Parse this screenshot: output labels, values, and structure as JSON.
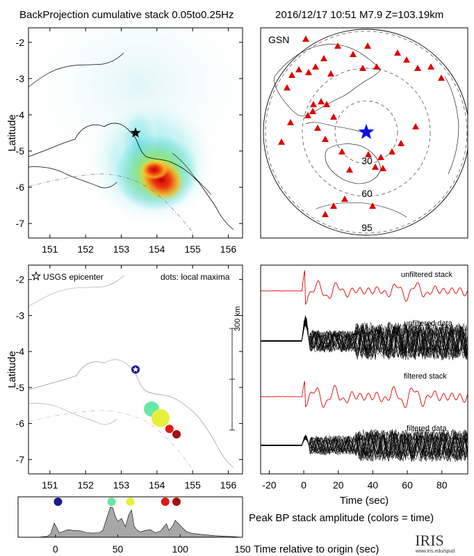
{
  "header": {
    "title": "BackProjection cumulative stack 0.05to0.25Hz",
    "event": "2016/12/17 10:51   M7.9  Z=103.19km"
  },
  "colors": {
    "map_frame": "#000000",
    "station": "#e00000",
    "epicenter_blue": "#1010e0",
    "stack_red": "#e00000",
    "trace_black": "#000000",
    "amplitude_fill": "#a8a8a8"
  },
  "chart_data": [
    {
      "type": "heatmap",
      "name": "backprojection-map",
      "ylabel": "Latitude",
      "xlim": [
        150.4,
        156.4
      ],
      "ylim": [
        -7.4,
        -1.6
      ],
      "x_ticks": [
        151,
        152,
        153,
        154,
        155,
        156
      ],
      "y_ticks": [
        -2,
        -3,
        -4,
        -5,
        -6,
        -7
      ],
      "epicenter": {
        "lon": 153.4,
        "lat": -4.5
      },
      "peak": {
        "lon": 154.1,
        "lat": -6.2
      }
    },
    {
      "type": "map",
      "name": "gsn-station-map",
      "label": "GSN",
      "ring_labels": [
        "30",
        "60",
        "95"
      ],
      "station_count": 41
    },
    {
      "type": "scatter",
      "name": "local-maxima-map",
      "ylabel": "Latitude",
      "legend": [
        "USGS epicenter",
        "dots: local maxima"
      ],
      "scale_label": "300 km",
      "xlim": [
        150.4,
        156.4
      ],
      "ylim": [
        -7.4,
        -1.6
      ],
      "x_ticks": [
        151,
        152,
        153,
        154,
        155,
        156
      ],
      "y_ticks": [
        -2,
        -3,
        -4,
        -5,
        -6,
        -7
      ],
      "points": [
        {
          "lon": 153.4,
          "lat": -4.5,
          "color": "#1a1a8c",
          "size": 6
        },
        {
          "lon": 153.85,
          "lat": -5.6,
          "color": "#66e8a8",
          "size": 11
        },
        {
          "lon": 154.1,
          "lat": -5.85,
          "color": "#e6f03c",
          "size": 13
        },
        {
          "lon": 154.35,
          "lat": -6.15,
          "color": "#e01818",
          "size": 6
        },
        {
          "lon": 154.55,
          "lat": -6.3,
          "color": "#a01010",
          "size": 6
        }
      ]
    },
    {
      "type": "line",
      "name": "waveforms",
      "xlabel": "Time (sec)",
      "xlim": [
        -25,
        95
      ],
      "x_ticks": [
        -20,
        0,
        20,
        40,
        60,
        80
      ],
      "labels": [
        "unfiltered stack",
        "unfiltered data",
        "filtered stack",
        "filtered data"
      ]
    },
    {
      "type": "area",
      "name": "peak-bp-amplitude",
      "title": "Peak BP stack amplitude (colors = time)",
      "xlabel": "Time relative to origin (sec)",
      "xlim": [
        -30,
        150
      ],
      "x_ticks": [
        0,
        50,
        100,
        150
      ],
      "x": [
        -30,
        -15,
        -7,
        -4,
        -1,
        1,
        3,
        5,
        10,
        15,
        20,
        25,
        30,
        35,
        38,
        41,
        44,
        46,
        48,
        50,
        53,
        56,
        59,
        61,
        63,
        65,
        68,
        72,
        76,
        80,
        84,
        87,
        89,
        91,
        94,
        96,
        98,
        101,
        105,
        110,
        118,
        128,
        140,
        150
      ],
      "values": [
        0,
        0,
        0.02,
        0.08,
        0.38,
        0.25,
        0.12,
        0.14,
        0.2,
        0.18,
        0.17,
        0.12,
        0.11,
        0.12,
        0.18,
        0.5,
        0.8,
        0.78,
        0.55,
        0.42,
        0.5,
        0.28,
        0.62,
        0.72,
        0.3,
        0.2,
        0.14,
        0.18,
        0.2,
        0.12,
        0.16,
        0.28,
        0.36,
        0.18,
        0.3,
        0.45,
        0.38,
        0.28,
        0.15,
        0.1,
        0.07,
        0.04,
        0.02,
        0
      ],
      "dots": [
        {
          "t": 2,
          "color": "#1a1a8c"
        },
        {
          "t": 45,
          "color": "#66e8a8"
        },
        {
          "t": 60,
          "color": "#e6f03c"
        },
        {
          "t": 88,
          "color": "#e01818"
        },
        {
          "t": 97,
          "color": "#a01010"
        }
      ]
    }
  ],
  "logo": {
    "text": "IRIS",
    "url_text": "www.iris.edu/spud"
  }
}
